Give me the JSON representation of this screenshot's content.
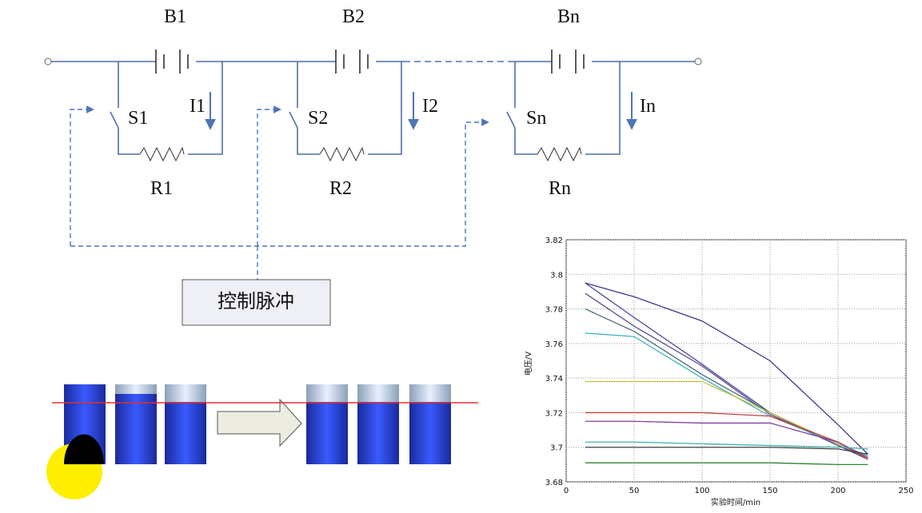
{
  "circuit": {
    "batteries": [
      "B1",
      "B2",
      "Bn"
    ],
    "switches": [
      "S1",
      "S2",
      "Sn"
    ],
    "currents": [
      "I1",
      "I2",
      "In"
    ],
    "resistors": [
      "R1",
      "R2",
      "Rn"
    ],
    "control_label": "控制脉冲"
  },
  "chart_data": {
    "type": "line",
    "x_label": "实验时间/min",
    "y_label": "电压/V",
    "x": [
      14,
      50,
      100,
      150,
      200,
      222
    ],
    "series": [
      {
        "color": "#3a3a8a",
        "values": [
          3.795,
          3.787,
          3.773,
          3.75,
          3.713,
          3.696
        ]
      },
      {
        "color": "#4a4a9a",
        "values": [
          3.795,
          3.775,
          3.748,
          3.72,
          3.701,
          3.694
        ]
      },
      {
        "color": "#5a4a8a",
        "values": [
          3.789,
          3.77,
          3.747,
          3.719,
          3.701,
          3.693
        ]
      },
      {
        "color": "#4a6a7a",
        "values": [
          3.78,
          3.767,
          3.742,
          3.72,
          3.702,
          3.694
        ]
      },
      {
        "color": "#40b0c0",
        "values": [
          3.766,
          3.764,
          3.74,
          3.718,
          3.702,
          3.695
        ]
      },
      {
        "color": "#c8c040",
        "values": [
          3.738,
          3.738,
          3.738,
          3.72,
          3.702,
          3.694
        ]
      },
      {
        "color": "#c04040",
        "values": [
          3.72,
          3.72,
          3.72,
          3.718,
          3.703,
          3.693
        ]
      },
      {
        "color": "#8040a0",
        "values": [
          3.715,
          3.715,
          3.714,
          3.714,
          3.703,
          3.694
        ]
      },
      {
        "color": "#40b0b0",
        "values": [
          3.703,
          3.703,
          3.702,
          3.701,
          3.7,
          3.699
        ]
      },
      {
        "color": "#404040",
        "values": [
          3.7,
          3.7,
          3.7,
          3.7,
          3.699,
          3.696
        ]
      },
      {
        "color": "#308030",
        "values": [
          3.691,
          3.691,
          3.691,
          3.691,
          3.69,
          3.69
        ]
      }
    ],
    "xlim": [
      0,
      250
    ],
    "ylim": [
      3.68,
      3.82
    ],
    "xticks": [
      0,
      50,
      100,
      150,
      200,
      250
    ],
    "yticks": [
      3.68,
      3.7,
      3.72,
      3.74,
      3.76,
      3.78,
      3.8,
      3.82
    ],
    "grid": true
  }
}
